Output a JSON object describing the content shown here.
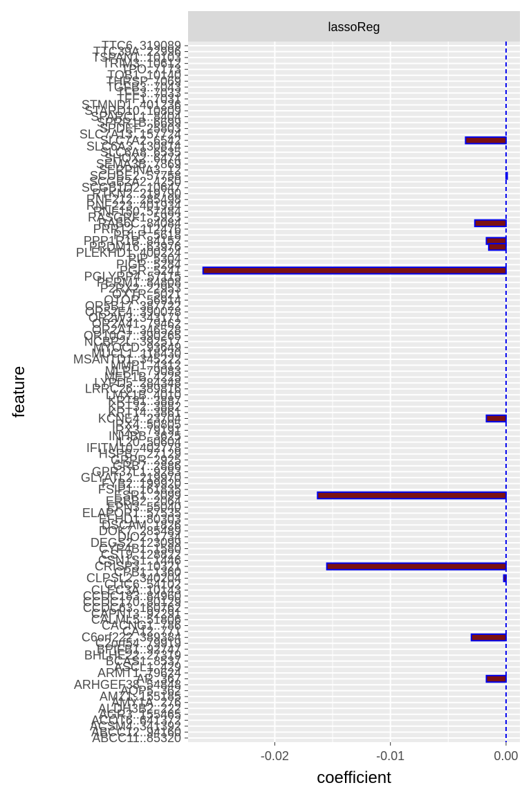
{
  "chart_data": {
    "type": "bar",
    "orientation": "horizontal",
    "facet_label": "lassoReg",
    "xlabel": "coefficient",
    "ylabel": "feature",
    "xlim": [
      -0.0275,
      0.0012
    ],
    "x_ticks": [
      -0.02,
      -0.01,
      0.0
    ],
    "x_tick_labels": [
      "-0.02",
      "-0.01",
      "0.00"
    ],
    "grid": true,
    "reference_line": 0.0,
    "colors": {
      "bar_fill": "#7b1113",
      "bar_outline": "#0000ee",
      "reference_line": "#0000ee",
      "panel_bg": "#ebebeb",
      "strip_bg": "#d9d9d9",
      "grid": "#ffffff",
      "axis_text": "#4d4d4d",
      "title_text": "#000000"
    },
    "features": [
      {
        "name": "TTC6..319089",
        "value": 0
      },
      {
        "name": "TTC39A..22996",
        "value": 0
      },
      {
        "name": "TSPAN1..10103",
        "value": 0
      },
      {
        "name": "TRIM3..10612",
        "value": 0
      },
      {
        "name": "TPO..7173",
        "value": 0
      },
      {
        "name": "TOB1..10140",
        "value": 0
      },
      {
        "name": "THRSP..7069",
        "value": 0
      },
      {
        "name": "TGFB3..7043",
        "value": 0
      },
      {
        "name": "TFF3..7033",
        "value": 0
      },
      {
        "name": "TFF1..7031",
        "value": 0
      },
      {
        "name": "STMND1..401236",
        "value": 0
      },
      {
        "name": "STARD10..10809",
        "value": 0
      },
      {
        "name": "SPARCL1..8404",
        "value": 0
      },
      {
        "name": "SPRR1B..6699",
        "value": 0
      },
      {
        "name": "SPDEF..25803",
        "value": 0
      },
      {
        "name": "SLC7A13..157724",
        "value": 0
      },
      {
        "name": "SLC7A2..6542",
        "value": -0.0035
      },
      {
        "name": "SLC6A3..130814",
        "value": 0
      },
      {
        "name": "SLC6A8..6535",
        "value": 0
      },
      {
        "name": "SHOX2..6474",
        "value": 0
      },
      {
        "name": "SEMA3B..7869",
        "value": 0
      },
      {
        "name": "SERPINA3..12",
        "value": 0
      },
      {
        "name": "SCUBE2..57758",
        "value": 0.0001
      },
      {
        "name": "SCGB2A2..4250",
        "value": 0
      },
      {
        "name": "SCGB1D2..10647",
        "value": 0
      },
      {
        "name": "RTKN2..219790",
        "value": 0
      },
      {
        "name": "RNF212..285498",
        "value": 0
      },
      {
        "name": "RNF223..401934",
        "value": 0
      },
      {
        "name": "RNF150..57484",
        "value": 0
      },
      {
        "name": "RASGRF1..5923",
        "value": 0
      },
      {
        "name": "RAB6C..84084",
        "value": -0.0027
      },
      {
        "name": "PRRT2..112476",
        "value": 0
      },
      {
        "name": "PRLR..5618",
        "value": 0
      },
      {
        "name": "PPP1R1B..84152",
        "value": -0.0017
      },
      {
        "name": "PRDM16..63976",
        "value": -0.0015
      },
      {
        "name": "PLEKHD1..400224",
        "value": 0
      },
      {
        "name": "PIP..5304",
        "value": 0
      },
      {
        "name": "PIGR..5284",
        "value": 0
      },
      {
        "name": "PGR..5241",
        "value": -0.0262
      },
      {
        "name": "PGLYRP4..57115",
        "value": 0
      },
      {
        "name": "PERM1..84808",
        "value": 0
      },
      {
        "name": "P2RX2..22953",
        "value": 0
      },
      {
        "name": "OXTR..5021",
        "value": 0
      },
      {
        "name": "OTOR..56914",
        "value": 0
      },
      {
        "name": "OR5B17..387722",
        "value": 0
      },
      {
        "name": "OR52E4..390078",
        "value": 0
      },
      {
        "name": "OR2W3..343171",
        "value": 0
      },
      {
        "name": "OR2A41..79462",
        "value": 0
      },
      {
        "name": "OR2A1..346528",
        "value": 0
      },
      {
        "name": "OR10G7..390265",
        "value": 0
      },
      {
        "name": "NCBP2L..392517",
        "value": 0
      },
      {
        "name": "MYOCD..93649",
        "value": 0
      },
      {
        "name": "MUCL1..118430",
        "value": 0
      },
      {
        "name": "MSANTD1..345222",
        "value": 0
      },
      {
        "name": "MMP1..4312",
        "value": 0
      },
      {
        "name": "MLPH..79083",
        "value": 0
      },
      {
        "name": "MEP1B..4225",
        "value": 0
      },
      {
        "name": "LYPD5..284348",
        "value": 0
      },
      {
        "name": "LRRC26..389816",
        "value": 0
      },
      {
        "name": "LMX1B..4010",
        "value": 0
      },
      {
        "name": "KRT81..3887",
        "value": 0
      },
      {
        "name": "KRT32..3882",
        "value": 0
      },
      {
        "name": "KRT14..3861",
        "value": 0
      },
      {
        "name": "KCNE4..23704",
        "value": -0.0017
      },
      {
        "name": "IRX4..50805",
        "value": 0
      },
      {
        "name": "IRX3..79191",
        "value": 0
      },
      {
        "name": "INHBB..3625",
        "value": 0
      },
      {
        "name": "IL20..50604",
        "value": 0
      },
      {
        "name": "IFITM10..402778",
        "value": 0
      },
      {
        "name": "HSPB7..27129",
        "value": 0
      },
      {
        "name": "GRPR..2925",
        "value": 0
      },
      {
        "name": "GRB7..2886",
        "value": 0
      },
      {
        "name": "GPR37L1..9283",
        "value": 0
      },
      {
        "name": "GLYATL2..219970",
        "value": 0
      },
      {
        "name": "FYB2..199920",
        "value": 0
      },
      {
        "name": "FSIP1..161835",
        "value": 0
      },
      {
        "name": "ESR1..2099",
        "value": -0.0163
      },
      {
        "name": "ERBB2..2064",
        "value": 0
      },
      {
        "name": "EPN3..55040",
        "value": 0
      },
      {
        "name": "ELAPOR1..57535",
        "value": 0
      },
      {
        "name": "EFHD1..80303",
        "value": 0
      },
      {
        "name": "DSCAM..1826",
        "value": 0
      },
      {
        "name": "DOK7..285489",
        "value": 0
      },
      {
        "name": "DIO2..1734",
        "value": 0
      },
      {
        "name": "DEGS2..123099",
        "value": 0
      },
      {
        "name": "CYP4B1..1580",
        "value": 0
      },
      {
        "name": "CST9..128822",
        "value": 0
      },
      {
        "name": "CSN1S1..1446",
        "value": 0
      },
      {
        "name": "CRISP3..10321",
        "value": -0.0155
      },
      {
        "name": "CPB1..1360",
        "value": 0
      },
      {
        "name": "CLPSL2..340204",
        "value": -0.0002
      },
      {
        "name": "CLIC6..54102",
        "value": 0
      },
      {
        "name": "CLEC3A..10143",
        "value": 0
      },
      {
        "name": "CCDC183..84960",
        "value": 0
      },
      {
        "name": "CCDC170..80129",
        "value": 0
      },
      {
        "name": "CCDC63..160762",
        "value": 0
      },
      {
        "name": "CAPN13..92291",
        "value": 0
      },
      {
        "name": "CALML5..51806",
        "value": 0
      },
      {
        "name": "CACNG1..786",
        "value": 0
      },
      {
        "name": "CA12..771",
        "value": 0
      },
      {
        "name": "C6orf222..389384",
        "value": -0.003
      },
      {
        "name": "C2orf54..79919",
        "value": 0
      },
      {
        "name": "BPIFB1..92747",
        "value": 0
      },
      {
        "name": "BHLHE22..27319",
        "value": 0
      },
      {
        "name": "BCAS1..8537",
        "value": 0
      },
      {
        "name": "ASCL1..429",
        "value": 0
      },
      {
        "name": "ARMT1..79624",
        "value": 0
      },
      {
        "name": "AR..367",
        "value": -0.0017
      },
      {
        "name": "ARHGEF38..54848",
        "value": 0
      },
      {
        "name": "AQP5..362",
        "value": 0
      },
      {
        "name": "AMZ1..155185",
        "value": 0
      },
      {
        "name": "AMY1A..276",
        "value": 0
      },
      {
        "name": "ALDH3B2..222",
        "value": 0
      },
      {
        "name": "AGR3..155465",
        "value": 0
      },
      {
        "name": "ACOT6..641372",
        "value": 0
      },
      {
        "name": "ACSM4..341392",
        "value": 0
      },
      {
        "name": "ABCC12..94160",
        "value": 0
      },
      {
        "name": "ABCC11..85320",
        "value": 0
      }
    ]
  }
}
